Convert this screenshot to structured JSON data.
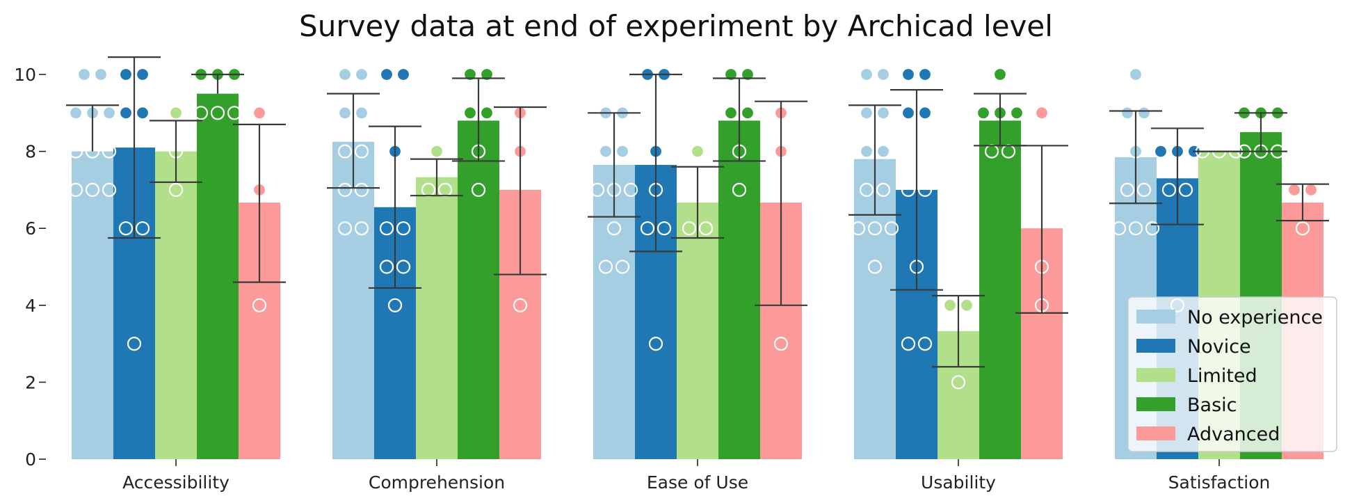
{
  "chart_data": {
    "type": "bar",
    "title": "Survey data at end of experiment by Archicad level",
    "xlabel": "",
    "ylabel": "",
    "ylim": [
      0,
      10.5
    ],
    "yticks": [
      0,
      2,
      4,
      6,
      8,
      10
    ],
    "categories": [
      "Accessibility",
      "Comprehension",
      "Ease of Use",
      "Usability",
      "Satisfaction"
    ],
    "legend_position": "lower-right",
    "series": [
      {
        "name": "No experience",
        "color": "#a6cee3",
        "values": [
          8.0,
          8.25,
          7.65,
          7.8,
          7.85
        ],
        "err_low": [
          null,
          7.05,
          6.3,
          6.35,
          6.65
        ],
        "err_high": [
          9.2,
          9.5,
          9.0,
          9.2,
          9.05
        ],
        "points": [
          [
            10,
            10,
            9,
            9,
            9,
            8,
            8,
            8,
            7,
            7,
            7
          ],
          [
            10,
            10,
            9,
            9,
            8,
            8,
            7,
            7,
            6,
            6
          ],
          [
            9,
            9,
            8,
            8,
            7,
            7,
            7,
            6,
            5,
            5
          ],
          [
            10,
            10,
            9,
            9,
            8,
            8,
            7,
            7,
            6,
            6,
            6,
            5
          ],
          [
            10,
            9,
            9,
            8,
            7,
            7,
            6,
            6,
            6
          ]
        ]
      },
      {
        "name": "Novice",
        "color": "#1f78b4",
        "values": [
          8.1,
          6.55,
          7.65,
          7.0,
          7.3
        ],
        "err_low": [
          5.75,
          4.45,
          5.4,
          4.4,
          6.1
        ],
        "err_high": [
          10.45,
          8.65,
          10.0,
          9.6,
          8.6
        ],
        "points": [
          [
            10,
            10,
            9,
            9,
            6,
            6,
            3
          ],
          [
            10,
            10,
            8,
            6,
            6,
            5,
            5,
            4
          ],
          [
            10,
            10,
            8,
            7,
            6,
            6,
            3
          ],
          [
            10,
            10,
            9,
            9,
            7,
            7,
            5,
            3,
            3
          ],
          [
            8,
            8,
            8,
            7,
            7,
            4
          ]
        ]
      },
      {
        "name": "Limited",
        "color": "#b2df8a",
        "values": [
          8.0,
          7.33,
          6.67,
          3.33,
          8.0
        ],
        "err_low": [
          7.2,
          6.85,
          5.75,
          2.4,
          8.0
        ],
        "err_high": [
          8.8,
          7.8,
          7.6,
          4.25,
          8.0
        ],
        "points": [
          [
            9,
            8,
            7
          ],
          [
            8,
            7,
            7
          ],
          [
            8,
            6,
            6
          ],
          [
            4,
            4,
            2
          ],
          [
            8,
            8,
            8
          ]
        ]
      },
      {
        "name": "Basic",
        "color": "#33a02c",
        "values": [
          9.5,
          8.8,
          8.8,
          8.8,
          8.5
        ],
        "err_low": [
          null,
          7.75,
          7.75,
          8.15,
          8.0
        ],
        "err_high": [
          10.0,
          9.9,
          9.9,
          9.5,
          9.0
        ],
        "points": [
          [
            10,
            10,
            10,
            9,
            9,
            9
          ],
          [
            10,
            10,
            9,
            9,
            8,
            7
          ],
          [
            10,
            10,
            9,
            9,
            8,
            7
          ],
          [
            10,
            9,
            9,
            9,
            8,
            8
          ],
          [
            9,
            9,
            9,
            8,
            8,
            8
          ]
        ]
      },
      {
        "name": "Advanced",
        "color": "#fb9a99",
        "values": [
          6.67,
          7.0,
          6.67,
          6.0,
          6.67
        ],
        "err_low": [
          4.6,
          4.8,
          4.0,
          3.8,
          6.2
        ],
        "err_high": [
          8.7,
          9.15,
          9.3,
          8.15,
          7.15
        ],
        "points": [
          [
            9,
            7,
            4
          ],
          [
            9,
            8,
            4
          ],
          [
            9,
            8,
            3
          ],
          [
            9,
            5,
            4
          ],
          [
            7,
            7,
            6
          ]
        ]
      }
    ]
  }
}
